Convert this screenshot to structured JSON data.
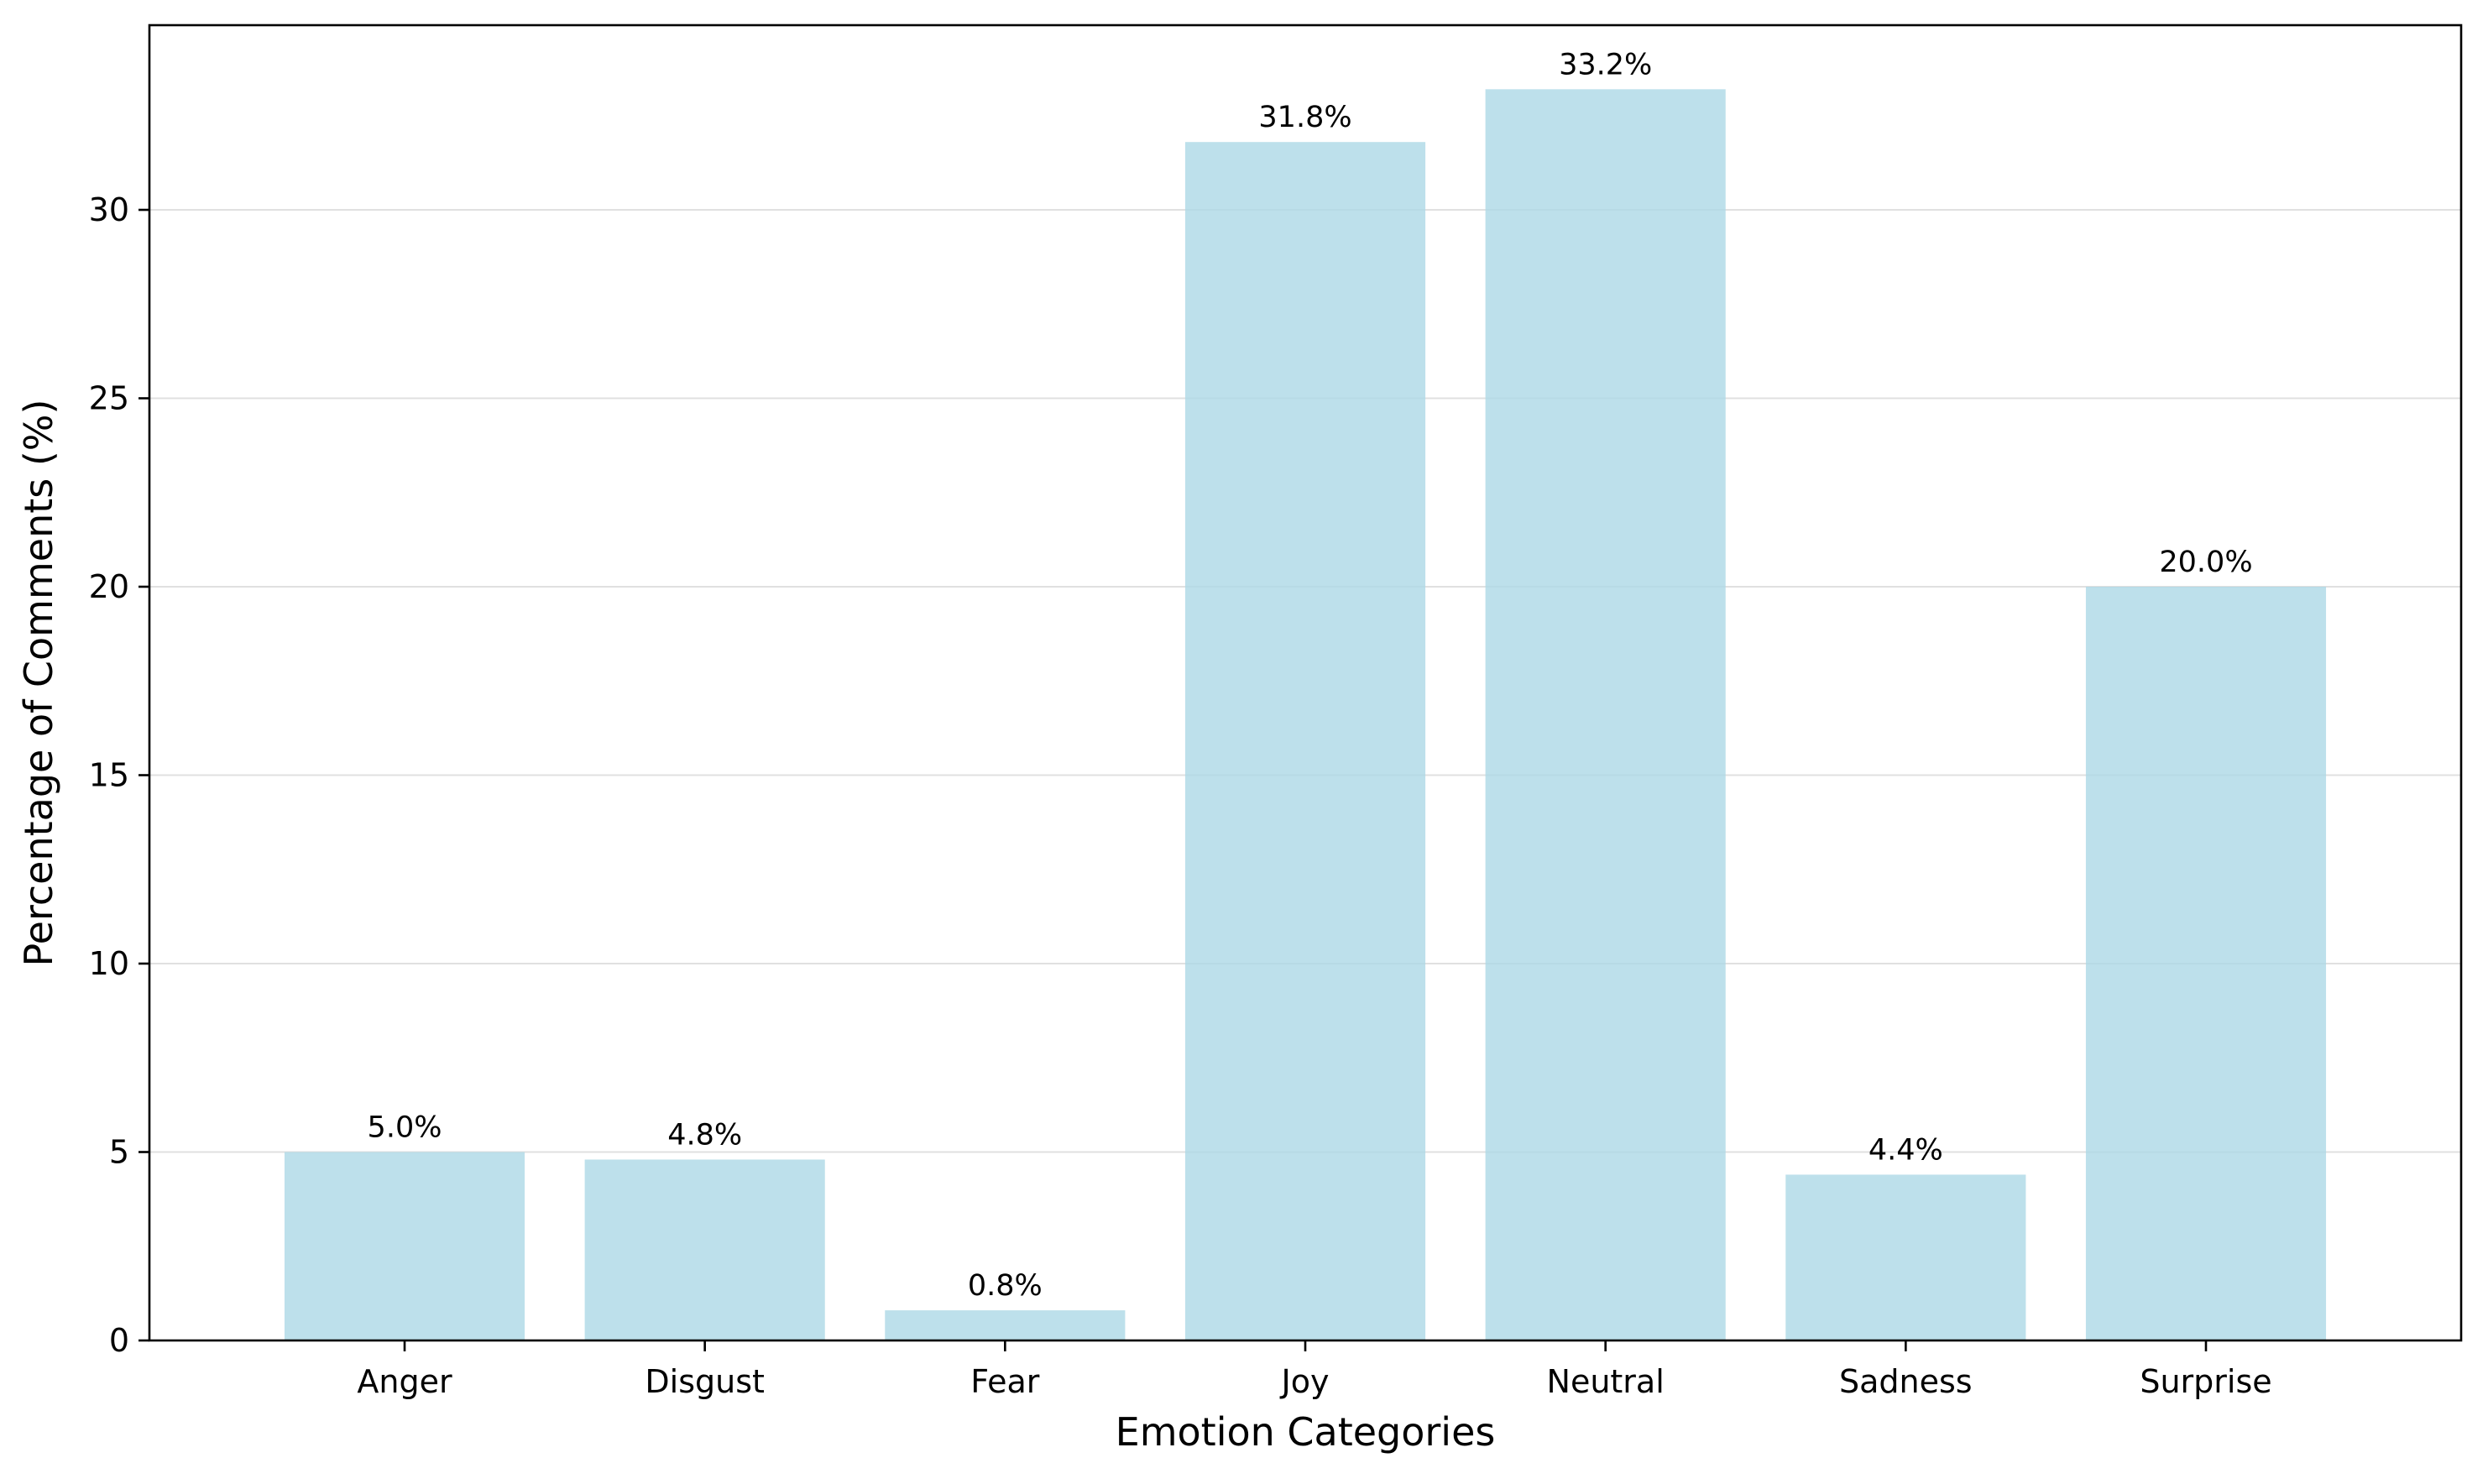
{
  "chart_data": {
    "type": "bar",
    "title": "",
    "xlabel": "Emotion Categories",
    "ylabel": "Percentage of Comments (%)",
    "categories": [
      "Anger",
      "Disgust",
      "Fear",
      "Joy",
      "Neutral",
      "Sadness",
      "Surprise"
    ],
    "values": [
      5.0,
      4.8,
      0.8,
      31.8,
      33.2,
      4.4,
      20.0
    ],
    "value_labels": [
      "5.0%",
      "4.8%",
      "0.8%",
      "31.8%",
      "33.2%",
      "4.4%",
      "20.0%"
    ],
    "ylim": [
      0,
      34.9
    ],
    "yticks": [
      0,
      5,
      10,
      15,
      20,
      25,
      30
    ],
    "ytick_labels": [
      "0",
      "5",
      "10",
      "15",
      "20",
      "25",
      "30"
    ],
    "grid": "horizontal",
    "bar_color": "#add8e6",
    "bar_opacity": 0.8,
    "grid_color": "#e0e0e0"
  }
}
